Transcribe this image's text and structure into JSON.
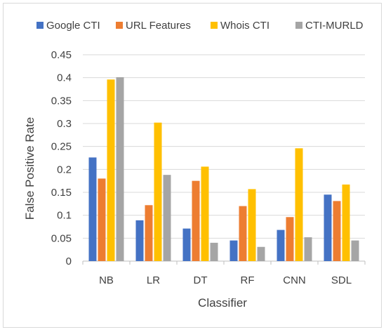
{
  "chart_data": {
    "type": "bar",
    "title": "",
    "xlabel": "Classifier",
    "ylabel": "False Positive Rate",
    "categories": [
      "NB",
      "LR",
      "DT",
      "RF",
      "CNN",
      "SDL"
    ],
    "ylim": [
      0,
      0.45
    ],
    "yticks": [
      "0",
      "0.05",
      "0.1",
      "0.15",
      "0.2",
      "0.25",
      "0.3",
      "0.35",
      "0.4",
      "0.45"
    ],
    "grid": true,
    "legend_position": "top",
    "series": [
      {
        "name": "Google CTI",
        "color": "#4472C4",
        "values": [
          0.226,
          0.089,
          0.071,
          0.045,
          0.068,
          0.145
        ]
      },
      {
        "name": "URL Features",
        "color": "#ED7D31",
        "values": [
          0.18,
          0.122,
          0.175,
          0.12,
          0.096,
          0.131
        ]
      },
      {
        "name": "Whois CTI",
        "color": "#FFC000",
        "values": [
          0.396,
          0.302,
          0.206,
          0.157,
          0.246,
          0.167
        ]
      },
      {
        "name": "CTI-MURLD",
        "color": "#A5A5A5",
        "values": [
          0.401,
          0.188,
          0.04,
          0.031,
          0.052,
          0.045
        ]
      }
    ]
  }
}
